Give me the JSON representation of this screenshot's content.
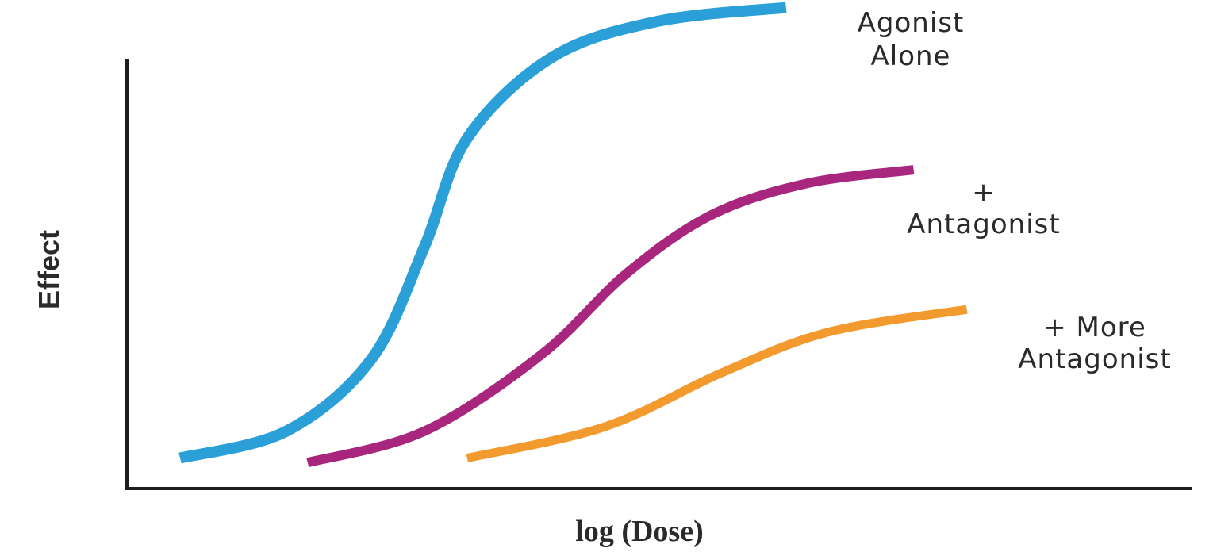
{
  "chart_data": {
    "type": "line",
    "title": "",
    "xlabel": "log (Dose)",
    "ylabel": "Effect",
    "x_scale": "log",
    "grid": false,
    "legend": "none",
    "xlim": [
      0,
      10
    ],
    "ylim": [
      0,
      10
    ],
    "series": [
      {
        "name": "Agonist Alone",
        "label_lines": [
          "Agonist",
          "Alone"
        ],
        "color": "#2a9fd8",
        "points": [
          [
            0.5,
            0.2
          ],
          [
            1.5,
            0.8
          ],
          [
            2.3,
            2.4
          ],
          [
            2.8,
            4.9
          ],
          [
            3.2,
            7.3
          ],
          [
            4.0,
            9.1
          ],
          [
            5.0,
            9.9
          ],
          [
            6.2,
            10.2
          ]
        ]
      },
      {
        "name": "+ Antagonist",
        "label_lines": [
          "+",
          "Antagonist"
        ],
        "color": "#a8267e",
        "points": [
          [
            1.7,
            0.1
          ],
          [
            2.8,
            0.8
          ],
          [
            3.9,
            2.5
          ],
          [
            4.7,
            4.3
          ],
          [
            5.5,
            5.6
          ],
          [
            6.4,
            6.3
          ],
          [
            7.4,
            6.6
          ]
        ]
      },
      {
        "name": "+ More Antagonist",
        "label_lines": [
          "+ More",
          "Antagonist"
        ],
        "color": "#f39a2e",
        "points": [
          [
            3.2,
            0.2
          ],
          [
            4.5,
            0.9
          ],
          [
            5.6,
            2.1
          ],
          [
            6.6,
            3.0
          ],
          [
            7.9,
            3.5
          ]
        ]
      }
    ]
  }
}
